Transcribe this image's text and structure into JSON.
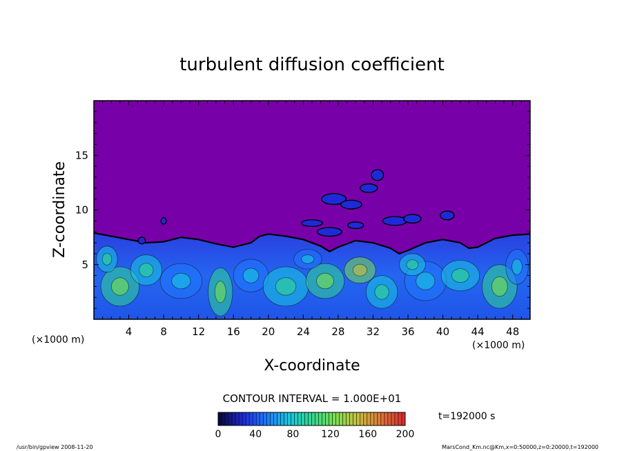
{
  "chart_data": {
    "type": "heatmap",
    "title": "turbulent diffusion coefficient",
    "xlabel": "X-coordinate",
    "ylabel": "Z-coordinate",
    "x_unit": "(×1000 m)",
    "y_unit": "(×1000 m)",
    "xlim": [
      0,
      50
    ],
    "ylim": [
      0,
      20
    ],
    "x_ticks": [
      4,
      8,
      12,
      16,
      20,
      24,
      28,
      32,
      36,
      40,
      44,
      48
    ],
    "y_ticks": [
      5,
      10,
      15
    ],
    "grid": false,
    "contour_interval": "CONTOUR INTERVAL = 1.000E+01",
    "colorbar": {
      "min": 0,
      "max": 200,
      "ticks": [
        "0",
        "40",
        "80",
        "120",
        "160",
        "200"
      ],
      "colors": [
        "#7800a8",
        "#1e2ad8",
        "#1f78ff",
        "#18c8e0",
        "#30d890",
        "#78e050",
        "#c8c040",
        "#e07838",
        "#d83030"
      ]
    },
    "boundary_layer_top": [
      [
        0,
        7.9
      ],
      [
        2,
        7.6
      ],
      [
        4,
        7.3
      ],
      [
        6,
        7.0
      ],
      [
        8,
        7.1
      ],
      [
        10,
        7.5
      ],
      [
        12,
        7.3
      ],
      [
        14,
        6.9
      ],
      [
        16,
        6.6
      ],
      [
        18,
        7.0
      ],
      [
        19,
        7.6
      ],
      [
        20,
        7.8
      ],
      [
        22,
        7.6
      ],
      [
        24,
        7.3
      ],
      [
        26,
        6.7
      ],
      [
        27,
        6.2
      ],
      [
        28,
        6.6
      ],
      [
        30,
        7.2
      ],
      [
        32,
        7.0
      ],
      [
        34,
        6.5
      ],
      [
        35,
        6.0
      ],
      [
        36,
        6.3
      ],
      [
        38,
        7.0
      ],
      [
        40,
        7.3
      ],
      [
        42,
        7.0
      ],
      [
        43,
        6.5
      ],
      [
        44,
        6.6
      ],
      [
        46,
        7.4
      ],
      [
        48,
        7.7
      ],
      [
        50,
        7.8
      ]
    ],
    "time_label": "t=192000 s",
    "footer_left": "/usr/bin/gpview  2008-11-20",
    "footer_right": "MarsCond_Km.nc@Km,x=0:50000,z=0:20000,t=192000"
  }
}
